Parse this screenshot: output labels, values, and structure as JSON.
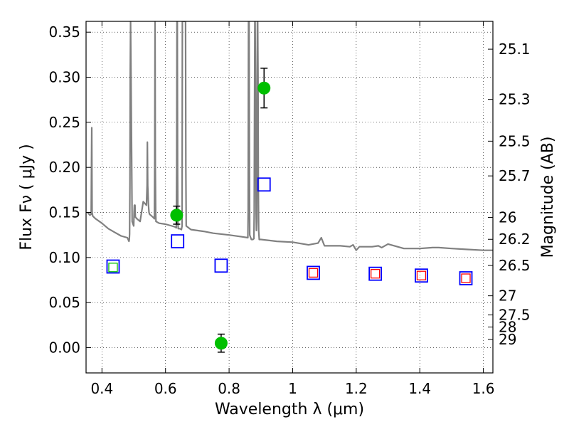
{
  "chart_data": {
    "type": "scatter",
    "title": "",
    "xlabel": "Wavelength  λ (μm)",
    "ylabel": "Flux  Fν  ( μJy )",
    "y2label": "Magnitude (AB)",
    "xlim": [
      0.35,
      1.63
    ],
    "ylim": [
      -0.028,
      0.362
    ],
    "grid": true,
    "x_ticks": [
      {
        "v": 0.4,
        "label": "0.4"
      },
      {
        "v": 0.6,
        "label": "0.6"
      },
      {
        "v": 0.8,
        "label": "0.8"
      },
      {
        "v": 1.0,
        "label": "1"
      },
      {
        "v": 1.2,
        "label": "1.2"
      },
      {
        "v": 1.4,
        "label": "1.4"
      },
      {
        "v": 1.6,
        "label": "1.6"
      }
    ],
    "y_ticks": [
      {
        "v": 0.0,
        "label": "0.00"
      },
      {
        "v": 0.05,
        "label": "0.05"
      },
      {
        "v": 0.1,
        "label": "0.10"
      },
      {
        "v": 0.15,
        "label": "0.15"
      },
      {
        "v": 0.2,
        "label": "0.20"
      },
      {
        "v": 0.25,
        "label": "0.25"
      },
      {
        "v": 0.3,
        "label": "0.30"
      },
      {
        "v": 0.35,
        "label": "0.35"
      }
    ],
    "mag_ticks": [
      {
        "mag": 25.1,
        "label": "25.1"
      },
      {
        "mag": 25.3,
        "label": "25.3"
      },
      {
        "mag": 25.5,
        "label": "25.5"
      },
      {
        "mag": 25.7,
        "label": "25.7"
      },
      {
        "mag": 26.0,
        "label": "26"
      },
      {
        "mag": 26.2,
        "label": "26.2"
      },
      {
        "mag": 26.5,
        "label": "26.5"
      },
      {
        "mag": 27.0,
        "label": "27"
      },
      {
        "mag": 27.5,
        "label": "27.5"
      },
      {
        "mag": 28.0,
        "label": "28"
      },
      {
        "mag": 29.0,
        "label": "29"
      }
    ],
    "series": [
      {
        "type": "line",
        "color": "#808080",
        "x": [
          0.355,
          0.362,
          0.366,
          0.367,
          0.368,
          0.369,
          0.371,
          0.38,
          0.4,
          0.42,
          0.44,
          0.46,
          0.48,
          0.485,
          0.486,
          0.487,
          0.488,
          0.489,
          0.49,
          0.495,
          0.5,
          0.501,
          0.502,
          0.503,
          0.504,
          0.505,
          0.51,
          0.52,
          0.53,
          0.54,
          0.542,
          0.543,
          0.544,
          0.546,
          0.548,
          0.55,
          0.56,
          0.565,
          0.566,
          0.567,
          0.568,
          0.569,
          0.57,
          0.58,
          0.6,
          0.62,
          0.63,
          0.634,
          0.635,
          0.636,
          0.637,
          0.638,
          0.639,
          0.64,
          0.645,
          0.65,
          0.652,
          0.653,
          0.654,
          0.655,
          0.656,
          0.657,
          0.658,
          0.659,
          0.66,
          0.661,
          0.662,
          0.663,
          0.664,
          0.665,
          0.68,
          0.7,
          0.72,
          0.75,
          0.8,
          0.84,
          0.859,
          0.86,
          0.861,
          0.862,
          0.863,
          0.864,
          0.865,
          0.87,
          0.875,
          0.878,
          0.879,
          0.88,
          0.881,
          0.882,
          0.883,
          0.884,
          0.885,
          0.886,
          0.887,
          0.888,
          0.889,
          0.89,
          0.891,
          0.892,
          0.893,
          0.895,
          0.9,
          0.95,
          1.0,
          1.05,
          1.08,
          1.09,
          1.1,
          1.15,
          1.18,
          1.19,
          1.2,
          1.21,
          1.25,
          1.27,
          1.28,
          1.3,
          1.35,
          1.4,
          1.44,
          1.46,
          1.5,
          1.55,
          1.6,
          1.63
        ],
        "y": [
          0.15,
          0.147,
          0.148,
          0.2,
          0.244,
          0.15,
          0.146,
          0.143,
          0.138,
          0.132,
          0.128,
          0.124,
          0.122,
          0.118,
          0.12,
          0.126,
          0.18,
          0.3,
          0.362,
          0.14,
          0.135,
          0.15,
          0.158,
          0.15,
          0.158,
          0.145,
          0.143,
          0.14,
          0.162,
          0.158,
          0.18,
          0.228,
          0.18,
          0.16,
          0.15,
          0.148,
          0.145,
          0.143,
          0.2,
          0.362,
          0.2,
          0.15,
          0.14,
          0.138,
          0.137,
          0.135,
          0.134,
          0.133,
          0.2,
          0.362,
          0.362,
          0.2,
          0.14,
          0.132,
          0.132,
          0.131,
          0.135,
          0.362,
          0.362,
          0.362,
          0.362,
          0.362,
          0.362,
          0.362,
          0.362,
          0.362,
          0.362,
          0.362,
          0.2,
          0.135,
          0.131,
          0.13,
          0.129,
          0.127,
          0.125,
          0.123,
          0.122,
          0.15,
          0.362,
          0.362,
          0.362,
          0.2,
          0.125,
          0.12,
          0.12,
          0.121,
          0.15,
          0.25,
          0.362,
          0.362,
          0.3,
          0.2,
          0.15,
          0.13,
          0.14,
          0.25,
          0.362,
          0.362,
          0.3,
          0.18,
          0.13,
          0.12,
          0.12,
          0.118,
          0.117,
          0.114,
          0.116,
          0.122,
          0.113,
          0.113,
          0.112,
          0.114,
          0.108,
          0.112,
          0.112,
          0.113,
          0.111,
          0.115,
          0.11,
          0.11,
          0.111,
          0.111,
          0.11,
          0.109,
          0.108,
          0.108
        ]
      },
      {
        "type": "scatter",
        "marker": "circle",
        "color": "#00bf00",
        "x": [
          0.635,
          0.775,
          0.91
        ],
        "y": [
          0.147,
          0.005,
          0.288
        ],
        "yerr": [
          0.01,
          0.01,
          0.022
        ]
      },
      {
        "type": "scatter",
        "marker": "open-square",
        "color": "#0000ff",
        "x": [
          0.435,
          0.638,
          0.775,
          0.91,
          1.065,
          1.26,
          1.405,
          1.545
        ],
        "y": [
          0.09,
          0.118,
          0.091,
          0.181,
          0.083,
          0.082,
          0.08,
          0.077
        ]
      },
      {
        "type": "scatter",
        "marker": "small-open-square",
        "color": "#ff0000",
        "x": [
          1.065,
          1.26,
          1.405,
          1.545
        ],
        "y": [
          0.083,
          0.082,
          0.08,
          0.077
        ]
      },
      {
        "type": "scatter",
        "marker": "small-open-square",
        "color": "#00bf00",
        "x": [
          0.435
        ],
        "y": [
          0.089
        ]
      }
    ]
  }
}
